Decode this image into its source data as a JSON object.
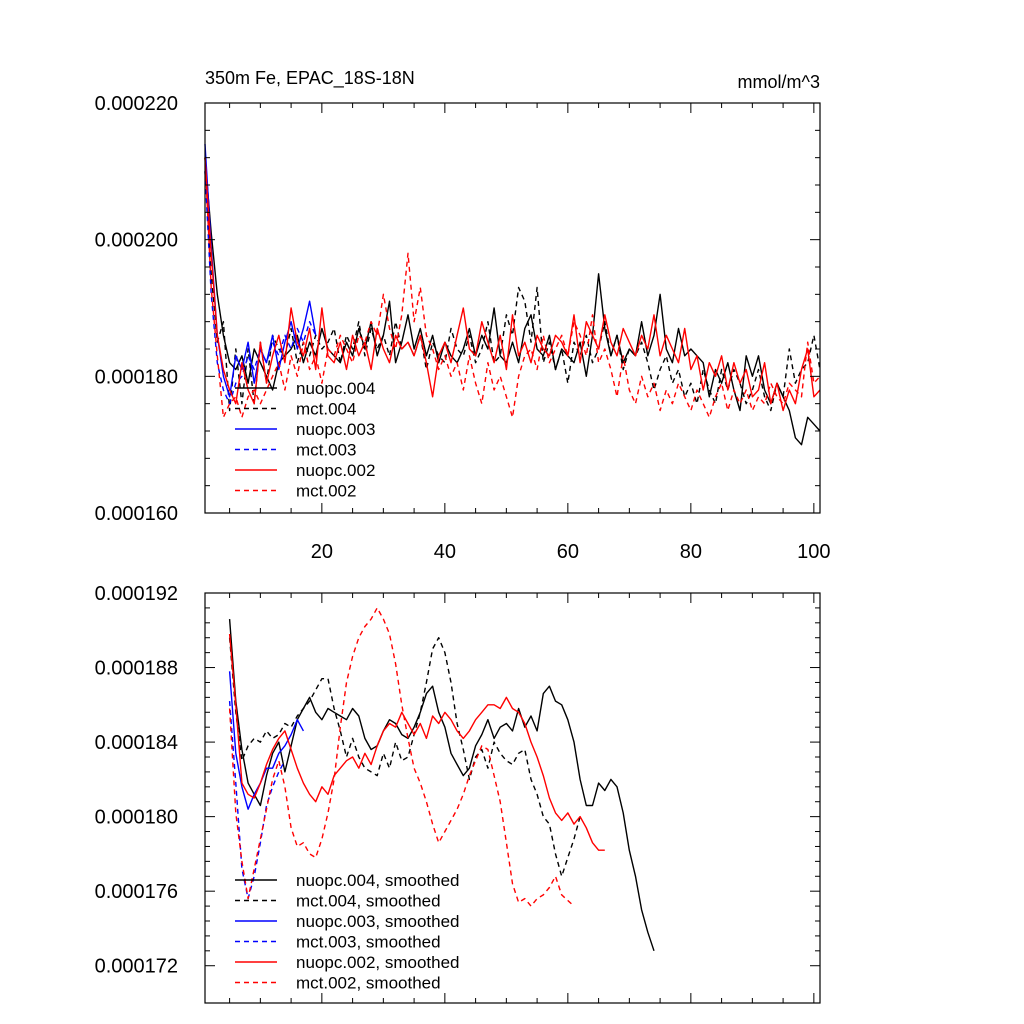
{
  "chart_data": [
    {
      "type": "line",
      "title": "350m Fe, EPAC_18S-18N",
      "units": "mmol/m^3",
      "xlim": [
        1,
        101
      ],
      "ylim": [
        0.00016,
        0.00022
      ],
      "x_ticks": [
        20,
        40,
        60,
        80,
        100
      ],
      "x_tick_labels": [
        "20",
        "40",
        "60",
        "80",
        "100"
      ],
      "y_ticks": [
        0.00016,
        0.00018,
        0.0002,
        0.00022
      ],
      "y_tick_labels": [
        "0.000160",
        "0.000180",
        "0.000200",
        "0.000220"
      ],
      "legend_position": "lower-left",
      "series": [
        {
          "name": "nuopc.004",
          "color": "#000000",
          "dash": "solid",
          "x_start": 1,
          "values": [
            0.000212,
            0.000201,
            0.000192,
            0.000186,
            0.000182,
            0.000181,
            0.000183,
            0.000179,
            0.000184,
            0.000182,
            0.00018,
            0.000178,
            0.000182,
            0.000183,
            0.000184,
            0.000186,
            0.000182,
            0.000185,
            0.000183,
            0.000187,
            0.000184,
            0.000183,
            0.000182,
            0.000185,
            0.000183,
            0.000187,
            0.000184,
            0.000188,
            0.000183,
            0.000186,
            0.000191,
            0.000182,
            0.000185,
            0.000189,
            0.000184,
            0.000187,
            0.000183,
            0.000186,
            0.000182,
            0.000185,
            0.000183,
            0.000182,
            0.000184,
            0.000187,
            0.000183,
            0.000186,
            0.000184,
            0.00019,
            0.000183,
            0.000182,
            0.000185,
            0.000182,
            0.000187,
            0.000189,
            0.000184,
            0.000183,
            0.000186,
            0.000181,
            0.000184,
            0.000183,
            0.000182,
            0.000185,
            0.00018,
            0.000186,
            0.000195,
            0.000187,
            0.000183,
            0.000186,
            0.000182,
            0.000184,
            0.000183,
            0.000188,
            0.000183,
            0.000186,
            0.000192,
            0.000184,
            0.000182,
            0.000187,
            0.000183,
            0.000184,
            0.000183,
            0.000182,
            0.000177,
            0.000181,
            0.000179,
            0.000182,
            0.000178,
            0.000175,
            0.000183,
            0.00018,
            0.000183,
            0.000178,
            0.000176,
            0.000179,
            0.000177,
            0.000175,
            0.000171,
            0.00017,
            0.000174,
            0.000173,
            0.000172
          ]
        },
        {
          "name": "mct.004",
          "color": "#000000",
          "dash": "dashed",
          "x_start": 1,
          "values": [
            0.00021,
            0.000195,
            0.000185,
            0.000188,
            0.000175,
            0.000184,
            0.000176,
            0.000184,
            0.000176,
            0.000185,
            0.000179,
            0.000186,
            0.000184,
            0.000183,
            0.000187,
            0.000182,
            0.000185,
            0.000183,
            0.000186,
            0.000184,
            0.000185,
            0.000187,
            0.000182,
            0.000186,
            0.000184,
            0.000188,
            0.000183,
            0.000187,
            0.000184,
            0.000186,
            0.000183,
            0.000188,
            0.000184,
            0.000185,
            0.000183,
            0.000186,
            0.000181,
            0.000185,
            0.000183,
            0.000182,
            0.000187,
            0.000184,
            0.000183,
            0.000186,
            0.000182,
            0.000184,
            0.000188,
            0.000182,
            0.000183,
            0.000189,
            0.000186,
            0.000193,
            0.000191,
            0.000185,
            0.000193,
            0.000182,
            0.000185,
            0.000181,
            0.000184,
            0.000179,
            0.000185,
            0.000183,
            0.000186,
            0.000182,
            0.000184,
            0.000188,
            0.000183,
            0.000186,
            0.000181,
            0.000184,
            0.000183,
            0.000185,
            0.000182,
            0.000178,
            0.000181,
            0.000183,
            0.000179,
            0.000181,
            0.000177,
            0.000179,
            0.000176,
            0.000181,
            0.000178,
            0.000176,
            0.000181,
            0.000178,
            0.000181,
            0.000179,
            0.000176,
            0.000178,
            0.000181,
            0.000177,
            0.000175,
            0.000179,
            0.000177,
            0.000184,
            0.000179,
            0.000181,
            0.000182,
            0.000186,
            0.000181
          ]
        },
        {
          "name": "nuopc.003",
          "color": "#0000ff",
          "dash": "solid",
          "x_start": 1,
          "values": [
            0.000214,
            0.000199,
            0.000186,
            0.00018,
            0.000177,
            0.000183,
            0.000181,
            0.000185,
            0.000179,
            0.000184,
            0.000182,
            0.000186,
            0.000181,
            0.000185,
            0.000188,
            0.000184,
            0.000187,
            0.000191,
            0.000186
          ]
        },
        {
          "name": "mct.003",
          "color": "#0000ff",
          "dash": "dashed",
          "x_start": 1,
          "values": [
            0.00021,
            0.000192,
            0.000182,
            0.000178,
            0.000176,
            0.000179,
            0.00018,
            0.000183,
            0.000181,
            0.000184,
            0.000182,
            0.000185,
            0.000183,
            0.000186,
            0.000184,
            0.000187,
            0.000185,
            0.000188,
            0.000186
          ]
        },
        {
          "name": "nuopc.002",
          "color": "#ff0000",
          "dash": "solid",
          "x_start": 1,
          "values": [
            0.000212,
            0.000198,
            0.000186,
            0.000181,
            0.000178,
            0.000176,
            0.000182,
            0.000178,
            0.000176,
            0.000185,
            0.000179,
            0.000183,
            0.000186,
            0.000182,
            0.00019,
            0.000185,
            0.000183,
            0.000187,
            0.000181,
            0.00019,
            0.000183,
            0.000182,
            0.000185,
            0.000181,
            0.000186,
            0.000183,
            0.000185,
            0.000181,
            0.000187,
            0.000184,
            0.000182,
            0.000186,
            0.000184,
            0.000185,
            0.000183,
            0.000186,
            0.000182,
            0.000177,
            0.000183,
            0.000185,
            0.000182,
            0.000186,
            0.00019,
            0.000184,
            0.000183,
            0.000188,
            0.000185,
            0.000182,
            0.000186,
            0.000181,
            0.000189,
            0.000183,
            0.000185,
            0.000182,
            0.000186,
            0.000184,
            0.000183,
            0.000186,
            0.000185,
            0.000183,
            0.000189,
            0.000182,
            0.000188,
            0.000186,
            0.000184,
            0.000189,
            0.000185,
            0.000183,
            0.000187,
            0.000185,
            0.000183,
            0.000186,
            0.000184,
            0.000189,
            0.000183,
            0.000186,
            0.000184,
            0.000182,
            0.000187,
            0.000181,
            0.000183,
            0.000178,
            0.000182,
            0.00018,
            0.000183,
            0.000178,
            0.000182,
            0.000179,
            0.000181,
            0.000177,
            0.000178,
            0.000182,
            0.000176,
            0.000179,
            0.000175,
            0.000178,
            0.000176,
            0.000181,
            0.000184,
            0.000177,
            0.000178
          ]
        },
        {
          "name": "mct.002",
          "color": "#ff0000",
          "dash": "dashed",
          "x_start": 1,
          "values": [
            0.000212,
            0.000193,
            0.000183,
            0.000174,
            0.000176,
            0.000177,
            0.000174,
            0.000177,
            0.000178,
            0.000176,
            0.000178,
            0.00018,
            0.000182,
            0.000178,
            0.000183,
            0.00018,
            0.000185,
            0.000181,
            0.000183,
            0.000179,
            0.000184,
            0.000183,
            0.000186,
            0.000184,
            0.000182,
            0.000186,
            0.000185,
            0.000188,
            0.000186,
            0.000192,
            0.000187,
            0.000184,
            0.000189,
            0.000198,
            0.000188,
            0.000193,
            0.000186,
            0.000184,
            0.000181,
            0.000183,
            0.00018,
            0.000182,
            0.000178,
            0.000183,
            0.000179,
            0.000176,
            0.000182,
            0.000178,
            0.00018,
            0.000177,
            0.000174,
            0.00018,
            0.000183,
            0.000184,
            0.000181,
            0.000186,
            0.000182,
            0.000184,
            0.000186,
            0.000183,
            0.000188,
            0.000186,
            0.000183,
            0.000189,
            0.000182,
            0.000184,
            0.000181,
            0.000177,
            0.000183,
            0.000178,
            0.000176,
            0.00018,
            0.000177,
            0.000179,
            0.000175,
            0.000178,
            0.000176,
            0.000179,
            0.000177,
            0.000175,
            0.000178,
            0.000176,
            0.000174,
            0.000177,
            0.000179,
            0.000175,
            0.000178,
            0.000176,
            0.000178,
            0.000175,
            0.000177,
            0.000176,
            0.000179,
            0.000177,
            0.000176,
            0.000179,
            0.000178,
            0.000177,
            0.000185,
            0.000179,
            0.00018
          ]
        }
      ]
    },
    {
      "type": "line",
      "title": "",
      "xlim": [
        1,
        101
      ],
      "ylim": [
        0.00017,
        0.000192
      ],
      "x_ticks": [
        20,
        40,
        60,
        80,
        100
      ],
      "y_ticks": [
        0.000172,
        0.000176,
        0.00018,
        0.000184,
        0.000188,
        0.000192
      ],
      "y_tick_labels": [
        "0.000172",
        "0.000176",
        "0.000180",
        "0.000184",
        "0.000188",
        "0.000192"
      ],
      "legend_position": "lower-left",
      "series": [
        {
          "name": "nuopc.004, smoothed",
          "color": "#000000",
          "dash": "solid",
          "x_start": 5,
          "values": [
            0.0001906,
            0.0001862,
            0.0001836,
            0.0001818,
            0.0001812,
            0.0001806,
            0.0001822,
            0.0001834,
            0.000184,
            0.0001824,
            0.0001838,
            0.0001852,
            0.0001858,
            0.0001864,
            0.0001856,
            0.0001852,
            0.0001858,
            0.0001856,
            0.0001854,
            0.0001852,
            0.0001858,
            0.0001854,
            0.0001842,
            0.0001836,
            0.0001838,
            0.0001846,
            0.0001852,
            0.000185,
            0.0001844,
            0.0001842,
            0.0001848,
            0.0001856,
            0.0001866,
            0.000187,
            0.0001856,
            0.0001848,
            0.0001834,
            0.0001828,
            0.0001822,
            0.0001826,
            0.0001838,
            0.0001844,
            0.0001852,
            0.0001842,
            0.0001848,
            0.000185,
            0.0001846,
            0.0001858,
            0.0001848,
            0.0001854,
            0.0001846,
            0.0001866,
            0.000187,
            0.0001862,
            0.000186,
            0.0001852,
            0.000184,
            0.000182,
            0.0001806,
            0.0001806,
            0.0001818,
            0.0001814,
            0.000182,
            0.0001816,
            0.0001802,
            0.0001782,
            0.0001768,
            0.000175,
            0.0001738,
            0.0001728
          ]
        },
        {
          "name": "mct.004, smoothed",
          "color": "#000000",
          "dash": "dashed",
          "x_start": 5,
          "values": [
            0.0001896,
            0.0001856,
            0.000183,
            0.0001838,
            0.0001842,
            0.000184,
            0.0001846,
            0.0001842,
            0.0001844,
            0.000185,
            0.0001848,
            0.0001854,
            0.0001858,
            0.0001862,
            0.0001868,
            0.0001874,
            0.0001874,
            0.0001858,
            0.0001846,
            0.0001832,
            0.0001842,
            0.0001832,
            0.0001826,
            0.0001824,
            0.0001822,
            0.0001834,
            0.0001826,
            0.000184,
            0.000183,
            0.0001832,
            0.0001844,
            0.0001856,
            0.0001872,
            0.000189,
            0.0001896,
            0.0001888,
            0.0001872,
            0.000185,
            0.0001836,
            0.000182,
            0.0001832,
            0.0001836,
            0.0001826,
            0.000184,
            0.0001834,
            0.000183,
            0.0001828,
            0.0001834,
            0.0001836,
            0.000182,
            0.0001812,
            0.00018,
            0.0001796,
            0.000178,
            0.0001768,
            0.0001778,
            0.0001788,
            0.00018
          ]
        },
        {
          "name": "nuopc.003, smoothed",
          "color": "#0000ff",
          "dash": "solid",
          "x_start": 5,
          "values": [
            0.0001878,
            0.0001834,
            0.0001816,
            0.0001804,
            0.0001812,
            0.0001818,
            0.0001826,
            0.0001826,
            0.0001834,
            0.0001838,
            0.0001844,
            0.0001852,
            0.0001846
          ]
        },
        {
          "name": "mct.003, smoothed",
          "color": "#0000ff",
          "dash": "dashed",
          "x_start": 5,
          "values": [
            0.0001862,
            0.0001818,
            0.0001772,
            0.0001756,
            0.0001768,
            0.0001786,
            0.0001806,
            0.0001816,
            0.0001824,
            0.000183
          ]
        },
        {
          "name": "nuopc.002, smoothed",
          "color": "#ff0000",
          "dash": "solid",
          "x_start": 5,
          "values": [
            0.0001898,
            0.000186,
            0.0001818,
            0.0001812,
            0.000181,
            0.0001818,
            0.0001828,
            0.0001836,
            0.0001842,
            0.0001846,
            0.0001836,
            0.0001826,
            0.0001818,
            0.0001812,
            0.0001808,
            0.0001816,
            0.0001812,
            0.0001822,
            0.0001826,
            0.000183,
            0.0001832,
            0.0001826,
            0.0001834,
            0.0001828,
            0.0001838,
            0.0001846,
            0.000185,
            0.0001848,
            0.0001856,
            0.000185,
            0.0001844,
            0.000185,
            0.0001842,
            0.0001854,
            0.000185,
            0.0001856,
            0.0001852,
            0.0001846,
            0.0001842,
            0.0001846,
            0.0001852,
            0.0001856,
            0.000186,
            0.000186,
            0.0001858,
            0.0001864,
            0.0001858,
            0.0001856,
            0.000185,
            0.000184,
            0.0001832,
            0.0001822,
            0.000181,
            0.0001802,
            0.0001798,
            0.0001802,
            0.0001796,
            0.00018,
            0.0001794,
            0.0001786,
            0.0001782,
            0.0001782
          ]
        },
        {
          "name": "mct.002, smoothed",
          "color": "#ff0000",
          "dash": "dashed",
          "x_start": 5,
          "values": [
            0.0001858,
            0.0001802,
            0.0001776,
            0.0001756,
            0.0001772,
            0.0001788,
            0.0001804,
            0.000182,
            0.000183,
            0.0001816,
            0.0001794,
            0.0001784,
            0.0001786,
            0.000178,
            0.0001778,
            0.0001788,
            0.0001802,
            0.000182,
            0.0001848,
            0.0001872,
            0.0001886,
            0.0001896,
            0.0001902,
            0.0001906,
            0.0001912,
            0.0001906,
            0.0001898,
            0.0001882,
            0.000186,
            0.0001842,
            0.0001826,
            0.0001818,
            0.0001808,
            0.0001796,
            0.0001786,
            0.0001792,
            0.0001798,
            0.0001804,
            0.0001812,
            0.0001822,
            0.000183,
            0.0001838,
            0.0001836,
            0.0001822,
            0.0001808,
            0.0001786,
            0.0001764,
            0.0001754,
            0.0001756,
            0.0001752,
            0.0001756,
            0.0001758,
            0.0001762,
            0.0001768,
            0.0001758,
            0.0001755,
            0.0001752
          ]
        }
      ]
    }
  ]
}
